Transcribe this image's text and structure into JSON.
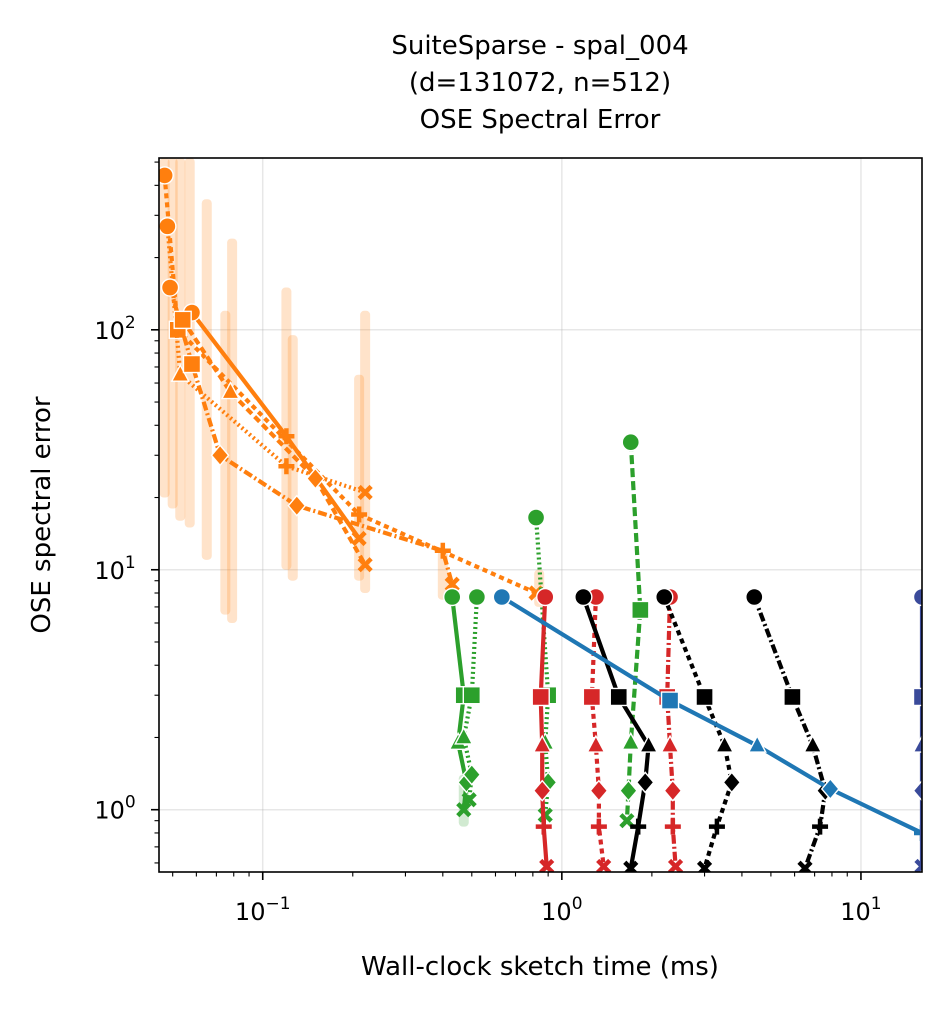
{
  "chart_data": {
    "type": "line",
    "title": [
      "SuiteSparse - spal_004",
      "(d=131072, n=512)",
      "OSE Spectral Error"
    ],
    "xlabel": "Wall-clock sketch time (ms)",
    "ylabel": "OSE spectral error",
    "xscale": "log",
    "yscale": "log",
    "xlim": [
      0.045,
      16
    ],
    "ylim": [
      0.55,
      520
    ],
    "grid": true,
    "x_ticks": [
      {
        "value": 0.1,
        "base": "10",
        "exp": "−1"
      },
      {
        "value": 1,
        "base": "10",
        "exp": "0"
      },
      {
        "value": 10,
        "base": "10",
        "exp": "1"
      }
    ],
    "y_ticks": [
      {
        "value": 1,
        "base": "10",
        "exp": "0"
      },
      {
        "value": 10,
        "base": "10",
        "exp": "1"
      },
      {
        "value": 100,
        "base": "10",
        "exp": "2"
      }
    ],
    "series": [
      {
        "color": "#ff7f0e",
        "dash": "solid",
        "markers": [
          "circle",
          "plus",
          "x"
        ],
        "x": [
          0.058,
          0.12,
          0.21
        ],
        "y": [
          118,
          36,
          13.5
        ]
      },
      {
        "color": "#ff7f0e",
        "dash": "5,4",
        "markers": [
          "circle",
          "square",
          "plus",
          "x"
        ],
        "x": [
          0.047,
          0.052,
          0.21,
          0.82
        ],
        "y": [
          440,
          100,
          17,
          8.0
        ]
      },
      {
        "color": "#ff7f0e",
        "dash": "2,3",
        "markers": [
          "circle",
          "triangle",
          "plus",
          "x"
        ],
        "x": [
          0.048,
          0.053,
          0.12,
          0.22
        ],
        "y": [
          270,
          65,
          27,
          21
        ]
      },
      {
        "color": "#ff7f0e",
        "dash": "9,3,2,3",
        "markers": [
          "circle",
          "square",
          "diamond",
          "diamond",
          "plus",
          "x"
        ],
        "x": [
          0.049,
          0.058,
          0.072,
          0.13,
          0.4,
          0.43
        ],
        "y": [
          150,
          72,
          30,
          18.5,
          12,
          8.7
        ]
      },
      {
        "color": "#ff7f0e",
        "dash": "7,4",
        "markers": [
          "square",
          "triangle",
          "diamond",
          "x"
        ],
        "x": [
          0.054,
          0.078,
          0.15,
          0.22
        ],
        "y": [
          110,
          55,
          24,
          10.5
        ]
      },
      {
        "color": "#2ca02c",
        "dash": "solid",
        "markers": [
          "circle",
          "square",
          "triangle",
          "diamond",
          "x"
        ],
        "x": [
          0.43,
          0.47,
          0.45,
          0.48,
          0.47
        ],
        "y": [
          7.7,
          3.0,
          1.9,
          1.3,
          1.0
        ]
      },
      {
        "color": "#2ca02c",
        "dash": "2,3",
        "markers": [
          "circle",
          "square",
          "triangle",
          "diamond",
          "x"
        ],
        "x": [
          0.52,
          0.5,
          0.47,
          0.5,
          0.49
        ],
        "y": [
          7.7,
          3.0,
          2.0,
          1.4,
          1.1
        ]
      },
      {
        "color": "#2ca02c",
        "dash": "2,3",
        "markers": [
          "circle",
          "square",
          "triangle",
          "diamond",
          "x"
        ],
        "x": [
          0.82,
          0.9,
          0.88,
          0.9,
          0.88
        ],
        "y": [
          16.5,
          3.0,
          1.9,
          1.3,
          0.95
        ]
      },
      {
        "color": "#2ca02c",
        "dash": "9,4",
        "markers": [
          "circle",
          "square",
          "triangle",
          "diamond",
          "x"
        ],
        "x": [
          1.7,
          1.83,
          1.7,
          1.67,
          1.65
        ],
        "y": [
          34,
          6.8,
          1.9,
          1.2,
          0.9
        ]
      },
      {
        "color": "#d62728",
        "dash": "solid",
        "markers": [
          "circle",
          "square",
          "triangle",
          "diamond",
          "plus",
          "x"
        ],
        "x": [
          0.88,
          0.85,
          0.86,
          0.86,
          0.87,
          0.89
        ],
        "y": [
          7.7,
          2.95,
          1.85,
          1.2,
          0.85,
          0.58
        ]
      },
      {
        "color": "#d62728",
        "dash": "5,4",
        "markers": [
          "circle",
          "square",
          "triangle",
          "diamond",
          "plus",
          "x"
        ],
        "x": [
          1.3,
          1.26,
          1.3,
          1.33,
          1.33,
          1.38
        ],
        "y": [
          7.7,
          2.95,
          1.85,
          1.2,
          0.85,
          0.58
        ]
      },
      {
        "color": "#d62728",
        "dash": "9,3,2,3",
        "markers": [
          "circle",
          "square",
          "triangle",
          "diamond",
          "plus",
          "x"
        ],
        "x": [
          2.3,
          2.25,
          2.3,
          2.35,
          2.35,
          2.4
        ],
        "y": [
          7.7,
          2.95,
          1.85,
          1.2,
          0.85,
          0.58
        ]
      },
      {
        "color": "#000000",
        "dash": "solid",
        "markers": [
          "circle",
          "square",
          "triangle",
          "diamond",
          "plus",
          "x"
        ],
        "x": [
          1.18,
          1.55,
          1.95,
          1.9,
          1.8,
          1.7
        ],
        "y": [
          7.7,
          2.95,
          1.85,
          1.3,
          0.85,
          0.57
        ]
      },
      {
        "color": "#000000",
        "dash": "5,4",
        "markers": [
          "circle",
          "square",
          "triangle",
          "diamond",
          "plus",
          "x"
        ],
        "x": [
          2.2,
          3.0,
          3.5,
          3.7,
          3.3,
          3.0
        ],
        "y": [
          7.7,
          2.95,
          1.85,
          1.3,
          0.85,
          0.57
        ]
      },
      {
        "color": "#000000",
        "dash": "9,3,2,3",
        "markers": [
          "circle",
          "square",
          "triangle",
          "diamond",
          "plus",
          "x"
        ],
        "x": [
          4.4,
          5.9,
          6.9,
          7.6,
          7.3,
          6.5
        ],
        "y": [
          7.7,
          2.95,
          1.85,
          1.2,
          0.85,
          0.57
        ]
      },
      {
        "color": "#1f77b4",
        "dash": "solid",
        "markers": [
          "circle",
          "square",
          "triangle",
          "diamond",
          "plus"
        ],
        "x": [
          0.63,
          2.3,
          4.5,
          7.9,
          16
        ],
        "y": [
          7.7,
          2.85,
          1.85,
          1.22,
          0.8
        ]
      },
      {
        "color": "#3a4a9a",
        "dash": "solid",
        "markers": [
          "circle",
          "square",
          "triangle",
          "diamond",
          "x"
        ],
        "x": [
          16,
          16,
          16,
          16,
          16
        ],
        "y": [
          7.7,
          2.95,
          1.85,
          1.2,
          0.58
        ]
      }
    ],
    "bands": [
      {
        "color": "#ff7f0e",
        "x": 0.047,
        "lo": 20,
        "hi": 520
      },
      {
        "color": "#ff7f0e",
        "x": 0.05,
        "lo": 18,
        "hi": 520
      },
      {
        "color": "#ff7f0e",
        "x": 0.053,
        "lo": 16,
        "hi": 520
      },
      {
        "color": "#ff7f0e",
        "x": 0.057,
        "lo": 15,
        "hi": 520
      },
      {
        "color": "#ff7f0e",
        "x": 0.065,
        "lo": 11,
        "hi": 350
      },
      {
        "color": "#ff7f0e",
        "x": 0.075,
        "lo": 6.5,
        "hi": 120
      },
      {
        "color": "#ff7f0e",
        "x": 0.079,
        "lo": 6.0,
        "hi": 240
      },
      {
        "color": "#ff7f0e",
        "x": 0.12,
        "lo": 10,
        "hi": 150
      },
      {
        "color": "#ff7f0e",
        "x": 0.126,
        "lo": 9,
        "hi": 95
      },
      {
        "color": "#ff7f0e",
        "x": 0.21,
        "lo": 9,
        "hi": 65
      },
      {
        "color": "#ff7f0e",
        "x": 0.22,
        "lo": 8,
        "hi": 120
      },
      {
        "color": "#ff7f0e",
        "x": 0.4,
        "lo": 7.5,
        "hi": 12
      },
      {
        "color": "#ff7f0e",
        "x": 0.84,
        "lo": 7,
        "hi": 10
      },
      {
        "color": "#2ca02c",
        "x": 0.47,
        "lo": 0.85,
        "hi": 1.4
      }
    ]
  }
}
